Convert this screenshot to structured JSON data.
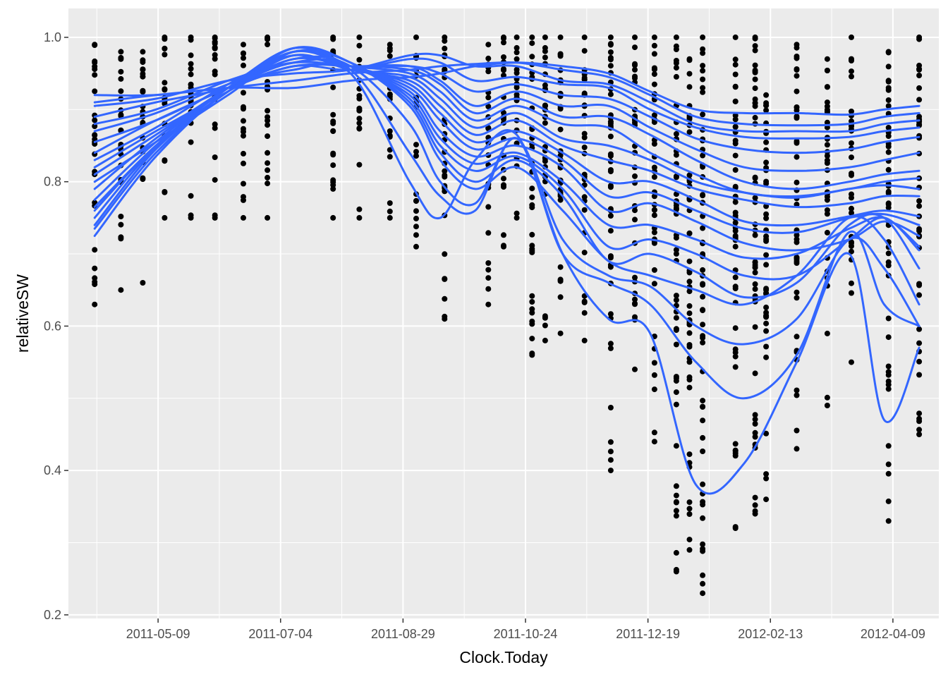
{
  "chart_data": {
    "type": "scatter",
    "title": "",
    "xlabel": "Clock.Today",
    "ylabel": "relativeSW",
    "x_type": "date",
    "xlim": [
      "2011-03-29",
      "2012-04-30"
    ],
    "ylim": [
      0.195,
      1.04
    ],
    "x_ticks": [
      "2011-05-09",
      "2011-07-04",
      "2011-08-29",
      "2011-10-24",
      "2011-12-19",
      "2012-02-13",
      "2012-04-09"
    ],
    "y_ticks": [
      0.2,
      0.4,
      0.6,
      0.8,
      1.0
    ],
    "y_tick_labels": [
      "0.2",
      "0.4",
      "0.6",
      "0.8",
      "1.0"
    ],
    "grid": true,
    "legend": "none",
    "colors": {
      "panel": "#ebebeb",
      "grid": "#ffffff",
      "points": "#000000",
      "lines": "#3366ff"
    },
    "point_groups": [
      {
        "date": "2011-04-10",
        "min": 0.63,
        "max": 0.99
      },
      {
        "date": "2011-04-22",
        "min": 0.65,
        "max": 0.98
      },
      {
        "date": "2011-05-02",
        "min": 0.66,
        "max": 0.98
      },
      {
        "date": "2011-05-12",
        "min": 0.75,
        "max": 1.0
      },
      {
        "date": "2011-05-24",
        "min": 0.75,
        "max": 1.0
      },
      {
        "date": "2011-06-04",
        "min": 0.75,
        "max": 1.0
      },
      {
        "date": "2011-06-17",
        "min": 0.75,
        "max": 0.99
      },
      {
        "date": "2011-06-28",
        "min": 0.75,
        "max": 1.0
      },
      {
        "date": "2011-07-28",
        "min": 0.75,
        "max": 1.0
      },
      {
        "date": "2011-08-09",
        "min": 0.75,
        "max": 1.0
      },
      {
        "date": "2011-08-23",
        "min": 0.75,
        "max": 0.99
      },
      {
        "date": "2011-09-04",
        "min": 0.71,
        "max": 1.0
      },
      {
        "date": "2011-09-17",
        "min": 0.61,
        "max": 1.0
      },
      {
        "date": "2011-10-07",
        "min": 0.63,
        "max": 0.99
      },
      {
        "date": "2011-10-14",
        "min": 0.71,
        "max": 1.0
      },
      {
        "date": "2011-10-20",
        "min": 0.75,
        "max": 1.0
      },
      {
        "date": "2011-10-27",
        "min": 0.56,
        "max": 1.0
      },
      {
        "date": "2011-11-02",
        "min": 0.58,
        "max": 1.0
      },
      {
        "date": "2011-11-09",
        "min": 0.59,
        "max": 1.0
      },
      {
        "date": "2011-11-20",
        "min": 0.58,
        "max": 1.0
      },
      {
        "date": "2011-12-02",
        "min": 0.4,
        "max": 1.0
      },
      {
        "date": "2011-12-13",
        "min": 0.54,
        "max": 1.0
      },
      {
        "date": "2011-12-22",
        "min": 0.44,
        "max": 1.0
      },
      {
        "date": "2012-01-01",
        "min": 0.26,
        "max": 1.0
      },
      {
        "date": "2012-01-07",
        "min": 0.29,
        "max": 0.97
      },
      {
        "date": "2012-01-13",
        "min": 0.23,
        "max": 1.0
      },
      {
        "date": "2012-01-28",
        "min": 0.32,
        "max": 1.0
      },
      {
        "date": "2012-02-06",
        "min": 0.34,
        "max": 1.0
      },
      {
        "date": "2012-02-11",
        "min": 0.36,
        "max": 0.92
      },
      {
        "date": "2012-02-25",
        "min": 0.43,
        "max": 0.99
      },
      {
        "date": "2012-03-10",
        "min": 0.49,
        "max": 0.97
      },
      {
        "date": "2012-03-21",
        "min": 0.55,
        "max": 1.0
      },
      {
        "date": "2012-04-07",
        "min": 0.33,
        "max": 0.98
      },
      {
        "date": "2012-04-21",
        "min": 0.45,
        "max": 1.0
      }
    ],
    "smooth_dates": [
      "2011-04-10",
      "2011-05-08",
      "2011-06-10",
      "2011-07-10",
      "2011-08-05",
      "2011-09-01",
      "2011-09-15",
      "2011-10-01",
      "2011-10-20",
      "2011-11-10",
      "2011-12-01",
      "2011-12-20",
      "2012-01-10",
      "2012-02-01",
      "2012-02-25",
      "2012-03-20",
      "2012-04-05",
      "2012-04-21"
    ],
    "series": [
      {
        "values": [
          0.92,
          0.92,
          0.93,
          0.93,
          0.94,
          0.945,
          0.95,
          0.96,
          0.965,
          0.96,
          0.95,
          0.925,
          0.9,
          0.895,
          0.895,
          0.893,
          0.9,
          0.905
        ]
      },
      {
        "values": [
          0.91,
          0.92,
          0.93,
          0.94,
          0.95,
          0.955,
          0.96,
          0.963,
          0.965,
          0.955,
          0.945,
          0.92,
          0.89,
          0.88,
          0.878,
          0.88,
          0.89,
          0.895
        ]
      },
      {
        "values": [
          0.905,
          0.915,
          0.94,
          0.95,
          0.955,
          0.975,
          0.975,
          0.96,
          0.96,
          0.94,
          0.935,
          0.91,
          0.88,
          0.87,
          0.87,
          0.87,
          0.88,
          0.885
        ]
      },
      {
        "values": [
          0.89,
          0.91,
          0.93,
          0.96,
          0.955,
          0.97,
          0.965,
          0.94,
          0.945,
          0.935,
          0.93,
          0.9,
          0.875,
          0.862,
          0.86,
          0.862,
          0.87,
          0.875
        ]
      },
      {
        "values": [
          0.88,
          0.9,
          0.94,
          0.965,
          0.96,
          0.96,
          0.95,
          0.925,
          0.935,
          0.92,
          0.915,
          0.89,
          0.86,
          0.845,
          0.84,
          0.845,
          0.855,
          0.862
        ]
      },
      {
        "values": [
          0.87,
          0.895,
          0.935,
          0.965,
          0.96,
          0.96,
          0.94,
          0.905,
          0.925,
          0.905,
          0.905,
          0.875,
          0.845,
          0.82,
          0.815,
          0.82,
          0.83,
          0.84
        ]
      },
      {
        "values": [
          0.855,
          0.885,
          0.93,
          0.96,
          0.96,
          0.955,
          0.935,
          0.895,
          0.915,
          0.89,
          0.89,
          0.865,
          0.83,
          0.8,
          0.79,
          0.8,
          0.81,
          0.815
        ]
      },
      {
        "values": [
          0.84,
          0.885,
          0.93,
          0.97,
          0.96,
          0.95,
          0.925,
          0.885,
          0.905,
          0.88,
          0.875,
          0.84,
          0.81,
          0.785,
          0.78,
          0.79,
          0.8,
          0.805
        ]
      },
      {
        "values": [
          0.83,
          0.875,
          0.935,
          0.975,
          0.955,
          0.945,
          0.915,
          0.875,
          0.895,
          0.86,
          0.85,
          0.83,
          0.8,
          0.785,
          0.778,
          0.79,
          0.795,
          0.79
        ]
      },
      {
        "values": [
          0.82,
          0.87,
          0.925,
          0.975,
          0.955,
          0.94,
          0.905,
          0.865,
          0.885,
          0.85,
          0.83,
          0.815,
          0.79,
          0.775,
          0.765,
          0.77,
          0.78,
          0.78
        ]
      },
      {
        "values": [
          0.81,
          0.865,
          0.93,
          0.98,
          0.96,
          0.935,
          0.895,
          0.855,
          0.87,
          0.84,
          0.8,
          0.8,
          0.775,
          0.745,
          0.74,
          0.752,
          0.76,
          0.752
        ]
      },
      {
        "values": [
          0.8,
          0.855,
          0.92,
          0.98,
          0.96,
          0.93,
          0.885,
          0.845,
          0.86,
          0.83,
          0.78,
          0.785,
          0.76,
          0.735,
          0.73,
          0.75,
          0.755,
          0.74
        ]
      },
      {
        "values": [
          0.79,
          0.86,
          0.93,
          0.985,
          0.96,
          0.925,
          0.87,
          0.835,
          0.85,
          0.82,
          0.76,
          0.77,
          0.745,
          0.715,
          0.705,
          0.72,
          0.745,
          0.725
        ]
      },
      {
        "values": [
          0.775,
          0.855,
          0.93,
          0.985,
          0.96,
          0.92,
          0.86,
          0.825,
          0.84,
          0.8,
          0.74,
          0.74,
          0.72,
          0.695,
          0.7,
          0.735,
          0.75,
          0.71
        ]
      },
      {
        "values": [
          0.765,
          0.85,
          0.93,
          0.985,
          0.965,
          0.915,
          0.85,
          0.815,
          0.835,
          0.79,
          0.71,
          0.72,
          0.7,
          0.67,
          0.67,
          0.72,
          0.75,
          0.705
        ]
      },
      {
        "values": [
          0.76,
          0.85,
          0.925,
          0.985,
          0.965,
          0.91,
          0.84,
          0.8,
          0.83,
          0.78,
          0.69,
          0.7,
          0.675,
          0.64,
          0.66,
          0.74,
          0.75,
          0.68
        ]
      },
      {
        "values": [
          0.75,
          0.848,
          0.925,
          0.98,
          0.965,
          0.905,
          0.83,
          0.79,
          0.82,
          0.76,
          0.69,
          0.67,
          0.65,
          0.63,
          0.67,
          0.75,
          0.72,
          0.63
        ]
      },
      {
        "values": [
          0.74,
          0.845,
          0.925,
          0.97,
          0.96,
          0.88,
          0.8,
          0.77,
          0.86,
          0.72,
          0.67,
          0.655,
          0.6,
          0.575,
          0.61,
          0.72,
          0.68,
          0.6
        ]
      },
      {
        "values": [
          0.735,
          0.84,
          0.925,
          0.965,
          0.955,
          0.84,
          0.78,
          0.76,
          0.86,
          0.7,
          0.66,
          0.63,
          0.55,
          0.5,
          0.56,
          0.73,
          0.63,
          0.6
        ]
      },
      {
        "values": [
          0.725,
          0.835,
          0.925,
          0.955,
          0.95,
          0.8,
          0.75,
          0.83,
          0.865,
          0.7,
          0.61,
          0.59,
          0.38,
          0.41,
          0.55,
          0.7,
          0.47,
          0.57
        ]
      }
    ]
  }
}
